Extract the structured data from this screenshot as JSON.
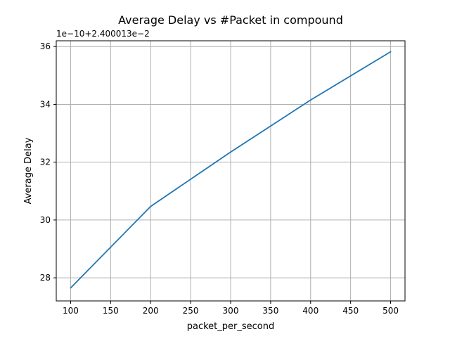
{
  "chart_data": {
    "type": "line",
    "title": "Average Delay vs #Packet in compound",
    "xlabel": "packet_per_second",
    "ylabel": "Average Delay",
    "y_offset_label": "1e−10+2.400013e−2",
    "xlim": [
      82,
      518
    ],
    "ylim": [
      27.2,
      36.2
    ],
    "x_ticks": [
      100,
      150,
      200,
      250,
      300,
      350,
      400,
      450,
      500
    ],
    "y_ticks": [
      28,
      30,
      32,
      34,
      36
    ],
    "grid": true,
    "series": [
      {
        "x": [
          100,
          200,
          300,
          400,
          500
        ],
        "y": [
          27.65,
          30.47,
          32.35,
          34.15,
          35.82
        ],
        "color": "#1f77b4"
      }
    ]
  }
}
